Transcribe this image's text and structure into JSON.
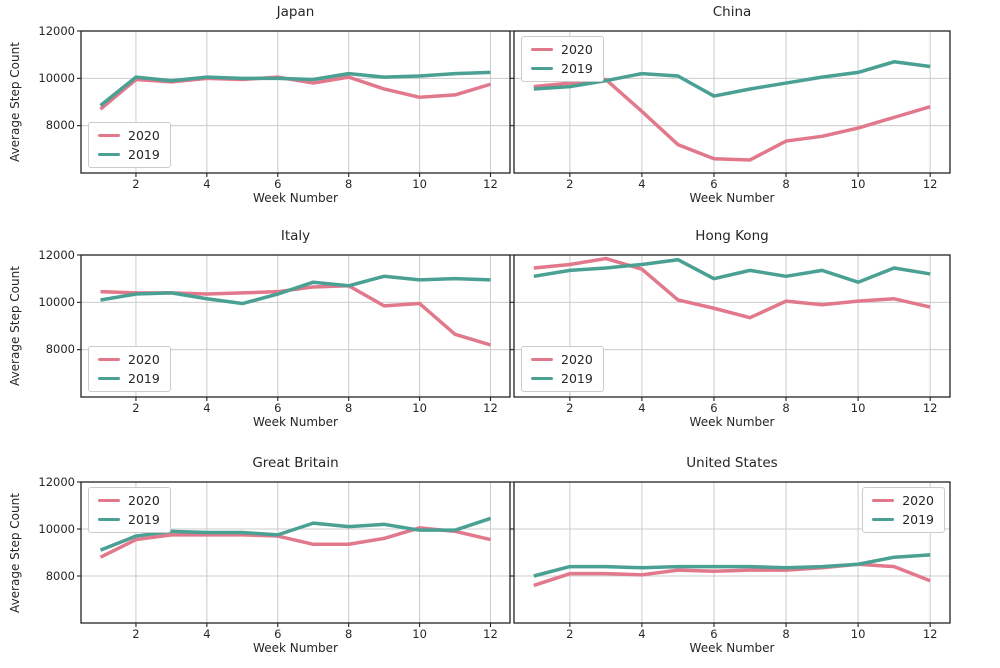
{
  "figure": {
    "ylabel": "Average Step Count",
    "xlabel": "Week Number",
    "legend_labels": [
      "2020",
      "2019"
    ],
    "colors": {
      "series_2020": "#e2788c",
      "series_2019": "#4aa093",
      "grid": "#cccccc",
      "spine": "#222222",
      "text": "#262626",
      "background": "#ffffff"
    }
  },
  "chart_data": [
    {
      "type": "line",
      "title": "Japan",
      "x": [
        1,
        2,
        3,
        4,
        5,
        6,
        7,
        8,
        9,
        10,
        11,
        12
      ],
      "series": [
        {
          "name": "2020",
          "values": [
            8700,
            9950,
            9850,
            10000,
            9950,
            10050,
            9800,
            10050,
            9550,
            9200,
            9300,
            9750
          ]
        },
        {
          "name": "2019",
          "values": [
            8850,
            10050,
            9900,
            10050,
            10000,
            10000,
            9950,
            10200,
            10050,
            10100,
            10200,
            10250
          ]
        }
      ],
      "xlabel": "Week Number",
      "ylabel": "Average Step Count",
      "ylim": [
        6000,
        12000
      ],
      "yticks": [
        8000,
        10000,
        12000
      ],
      "xticks": [
        2,
        4,
        6,
        8,
        10,
        12
      ],
      "grid": true,
      "legend_pos": "lower-left"
    },
    {
      "type": "line",
      "title": "China",
      "x": [
        1,
        2,
        3,
        4,
        5,
        6,
        7,
        8,
        9,
        10,
        11,
        12
      ],
      "series": [
        {
          "name": "2020",
          "values": [
            9650,
            9800,
            9950,
            8600,
            7200,
            6600,
            6550,
            7350,
            7550,
            7900,
            8350,
            8800
          ]
        },
        {
          "name": "2019",
          "values": [
            9550,
            9650,
            9900,
            10200,
            10100,
            9250,
            9550,
            9800,
            10050,
            10250,
            10700,
            10500
          ]
        }
      ],
      "xlabel": "Week Number",
      "ylabel": "Average Step Count",
      "ylim": [
        6000,
        12000
      ],
      "yticks": [
        8000,
        10000,
        12000
      ],
      "xticks": [
        2,
        4,
        6,
        8,
        10,
        12
      ],
      "grid": true,
      "legend_pos": "upper-left"
    },
    {
      "type": "line",
      "title": "Italy",
      "x": [
        1,
        2,
        3,
        4,
        5,
        6,
        7,
        8,
        9,
        10,
        11,
        12
      ],
      "series": [
        {
          "name": "2020",
          "values": [
            10450,
            10400,
            10400,
            10350,
            10400,
            10450,
            10650,
            10700,
            9850,
            9950,
            8650,
            8200
          ]
        },
        {
          "name": "2019",
          "values": [
            10100,
            10350,
            10400,
            10150,
            9950,
            10350,
            10850,
            10700,
            11100,
            10950,
            11000,
            10950
          ]
        }
      ],
      "xlabel": "Week Number",
      "ylabel": "Average Step Count",
      "ylim": [
        6000,
        12000
      ],
      "yticks": [
        8000,
        10000,
        12000
      ],
      "xticks": [
        2,
        4,
        6,
        8,
        10,
        12
      ],
      "grid": true,
      "legend_pos": "lower-left"
    },
    {
      "type": "line",
      "title": "Hong Kong",
      "x": [
        1,
        2,
        3,
        4,
        5,
        6,
        7,
        8,
        9,
        10,
        11,
        12
      ],
      "series": [
        {
          "name": "2020",
          "values": [
            11450,
            11600,
            11850,
            11400,
            10100,
            9750,
            9350,
            10050,
            9900,
            10050,
            10150,
            9800
          ]
        },
        {
          "name": "2019",
          "values": [
            11100,
            11350,
            11450,
            11600,
            11800,
            11000,
            11350,
            11100,
            11350,
            10850,
            11450,
            11200
          ]
        }
      ],
      "xlabel": "Week Number",
      "ylabel": "Average Step Count",
      "ylim": [
        6000,
        12000
      ],
      "yticks": [
        8000,
        10000,
        12000
      ],
      "xticks": [
        2,
        4,
        6,
        8,
        10,
        12
      ],
      "grid": true,
      "legend_pos": "lower-left"
    },
    {
      "type": "line",
      "title": "Great Britain",
      "x": [
        1,
        2,
        3,
        4,
        5,
        6,
        7,
        8,
        9,
        10,
        11,
        12
      ],
      "series": [
        {
          "name": "2020",
          "values": [
            8800,
            9550,
            9750,
            9750,
            9750,
            9700,
            9350,
            9350,
            9600,
            10050,
            9900,
            9550
          ]
        },
        {
          "name": "2019",
          "values": [
            9100,
            9700,
            9900,
            9850,
            9850,
            9750,
            10250,
            10100,
            10200,
            9950,
            9950,
            10450
          ]
        }
      ],
      "xlabel": "Week Number",
      "ylabel": "Average Step Count",
      "ylim": [
        6000,
        12000
      ],
      "yticks": [
        8000,
        10000,
        12000
      ],
      "xticks": [
        2,
        4,
        6,
        8,
        10,
        12
      ],
      "grid": true,
      "legend_pos": "upper-left"
    },
    {
      "type": "line",
      "title": "United States",
      "x": [
        1,
        2,
        3,
        4,
        5,
        6,
        7,
        8,
        9,
        10,
        11,
        12
      ],
      "series": [
        {
          "name": "2020",
          "values": [
            7600,
            8100,
            8100,
            8050,
            8250,
            8200,
            8250,
            8250,
            8350,
            8500,
            8400,
            7800
          ]
        },
        {
          "name": "2019",
          "values": [
            8000,
            8400,
            8400,
            8350,
            8400,
            8400,
            8400,
            8350,
            8400,
            8500,
            8800,
            8900
          ]
        }
      ],
      "xlabel": "Week Number",
      "ylabel": "Average Step Count",
      "ylim": [
        6000,
        12000
      ],
      "yticks": [
        8000,
        10000,
        12000
      ],
      "xticks": [
        2,
        4,
        6,
        8,
        10,
        12
      ],
      "grid": true,
      "legend_pos": "upper-right"
    }
  ]
}
